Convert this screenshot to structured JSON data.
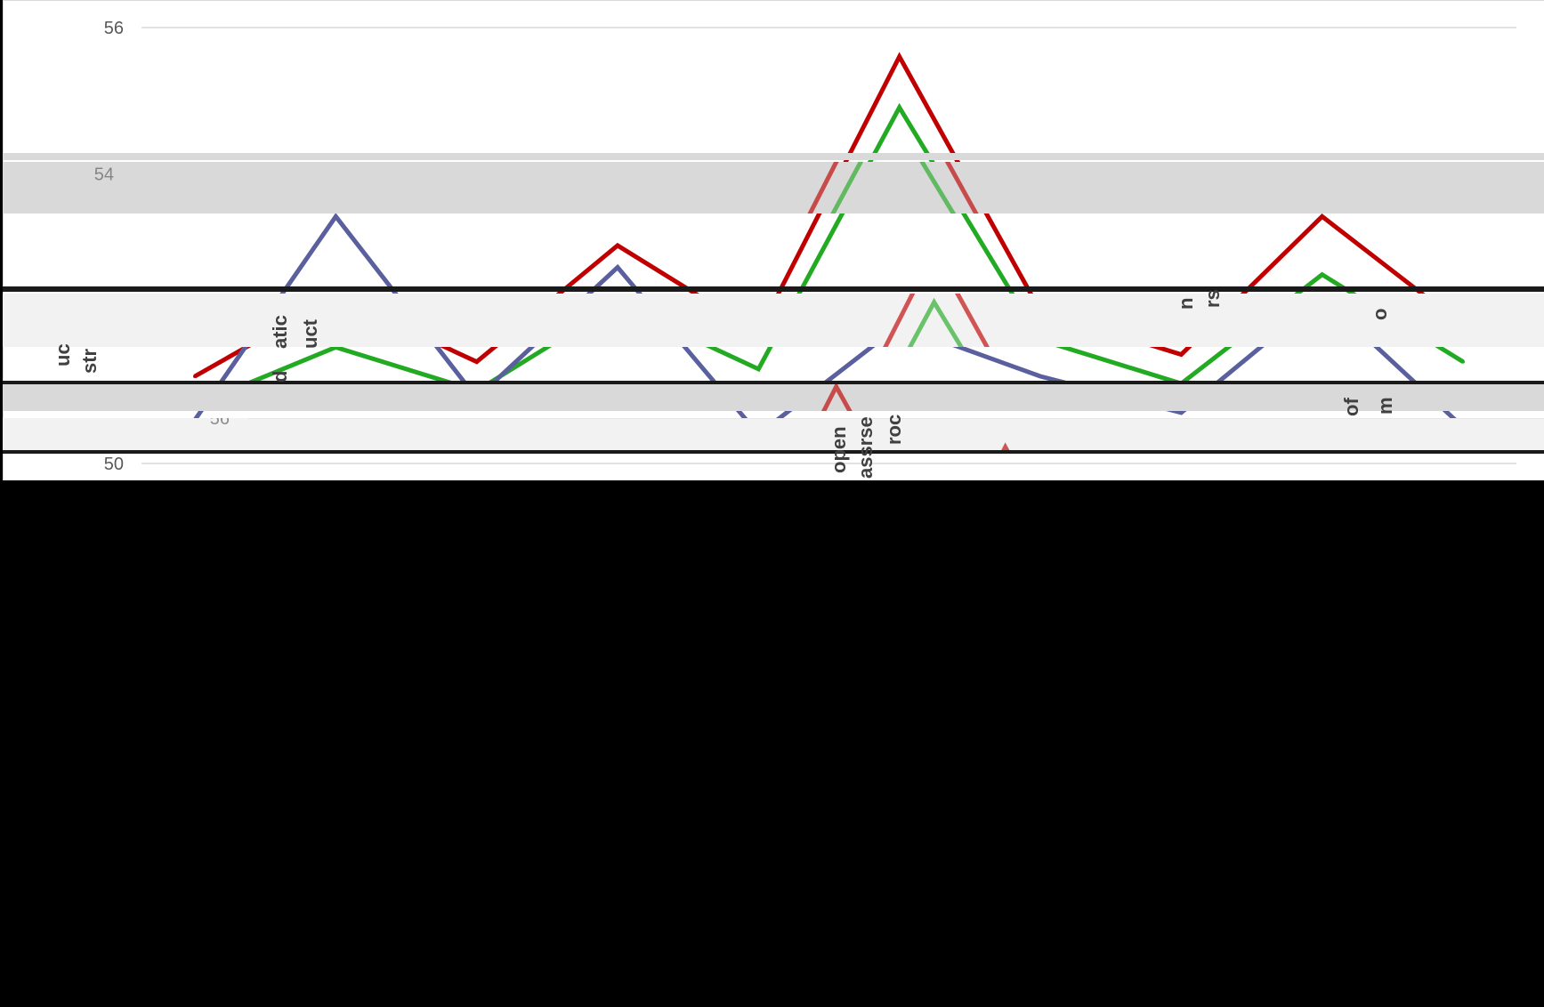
{
  "chart_data": {
    "type": "line",
    "yticks": [
      50,
      52,
      54,
      56
    ],
    "ylim": [
      50,
      56
    ],
    "grid": true,
    "legend": "none",
    "visible_tick_labels": [
      "56",
      "54",
      "54",
      "52",
      "50"
    ],
    "fragment_labels": [
      "uc",
      "str",
      "atic",
      "uct",
      "d",
      "open",
      "assrse",
      "roc",
      "n",
      "rs",
      "of",
      "m",
      "o"
    ],
    "series": [
      {
        "color": "#c00000",
        "values": [
          51.2,
          52.3,
          51.4,
          53.0,
          51.8,
          55.6,
          52.1,
          51.5,
          53.4,
          51.9
        ]
      },
      {
        "color": "#22aa22",
        "values": [
          50.8,
          51.6,
          51.0,
          52.2,
          51.3,
          54.9,
          51.7,
          51.1,
          52.6,
          51.4
        ]
      },
      {
        "color": "#5a5f9e",
        "values": [
          50.6,
          53.4,
          50.9,
          52.7,
          50.4,
          51.9,
          51.2,
          50.7,
          52.3,
          50.5
        ]
      }
    ],
    "colors": {
      "gridline": "#d9d9d9",
      "axis_text": "#595959",
      "glitch_gray": "#d9d9d9",
      "void": "#000000"
    }
  }
}
